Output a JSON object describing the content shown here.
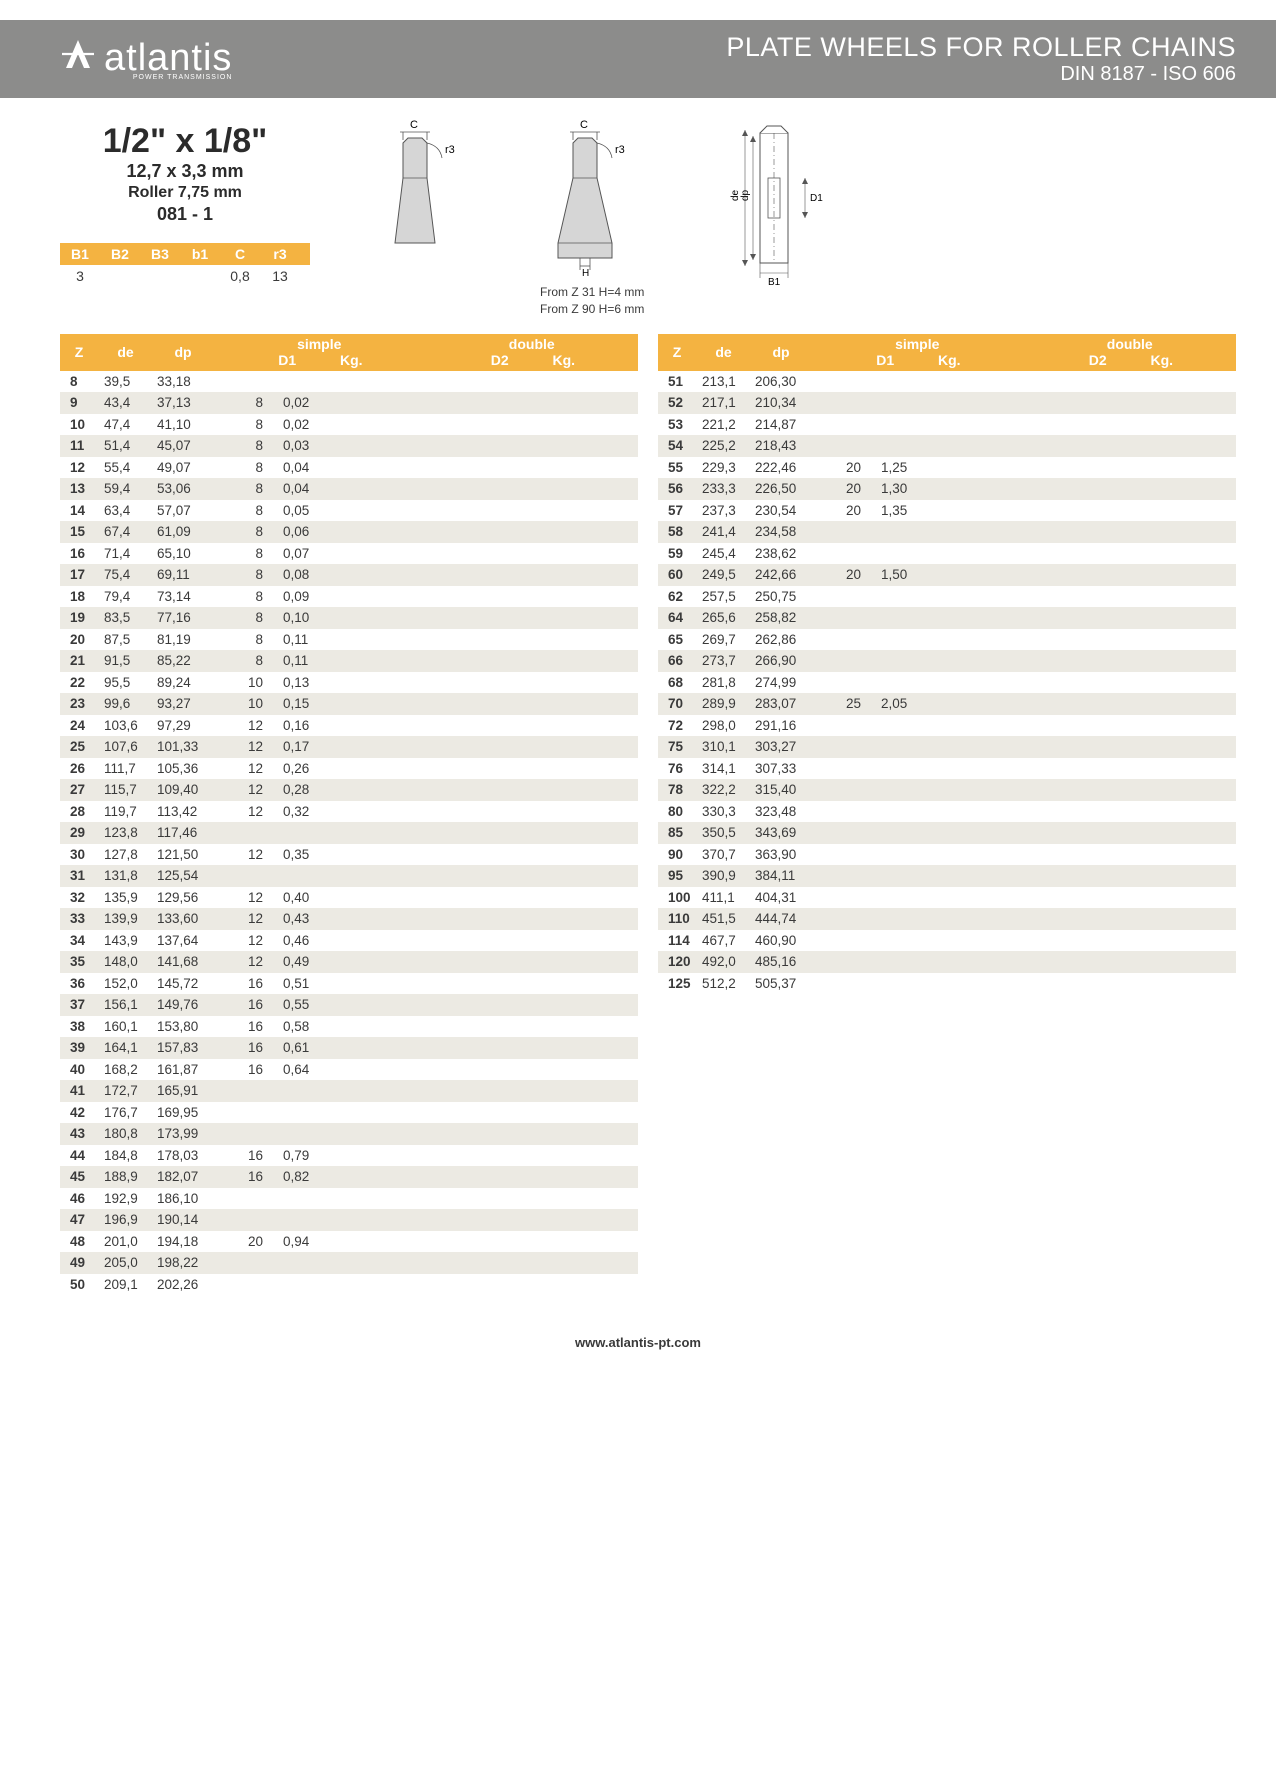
{
  "brand": {
    "name": "atlantis",
    "tagline": "POWER TRANSMISSION"
  },
  "header": {
    "title": "PLATE WHEELS FOR ROLLER CHAINS",
    "subtitle": "DIN 8187 - ISO 606"
  },
  "spec": {
    "size_imperial": "1/2\" x 1/8\"",
    "size_mm": "12,7 x 3,3 mm",
    "roller": "Roller 7,75 mm",
    "code": "081 - 1"
  },
  "params": {
    "headers": [
      "B1",
      "B2",
      "B3",
      "b1",
      "C",
      "r3"
    ],
    "values": [
      "3",
      "",
      "",
      "",
      "0,8",
      "13"
    ]
  },
  "diagram_labels": {
    "C": "C",
    "r3": "r3",
    "H": "H",
    "de": "de",
    "dp": "dp",
    "D1": "D1",
    "B1": "B1"
  },
  "notes": {
    "line1": "From Z 31 H=4 mm",
    "line2": "From Z 90 H=6 mm"
  },
  "table_headers": {
    "z": "Z",
    "de": "de",
    "dp": "dp",
    "simple": "simple",
    "double": "double",
    "d1": "D1",
    "kg": "Kg.",
    "d2": "D2",
    "kg2": "Kg."
  },
  "colors": {
    "header_bg": "#8c8c8b",
    "accent": "#f4b341",
    "row_alt": "#eceae3",
    "text": "#3a3a3a"
  },
  "left_rows": [
    {
      "z": "8",
      "de": "39,5",
      "dp": "33,18"
    },
    {
      "z": "9",
      "de": "43,4",
      "dp": "37,13",
      "d1": "8",
      "kg": "0,02"
    },
    {
      "z": "10",
      "de": "47,4",
      "dp": "41,10",
      "d1": "8",
      "kg": "0,02"
    },
    {
      "z": "11",
      "de": "51,4",
      "dp": "45,07",
      "d1": "8",
      "kg": "0,03"
    },
    {
      "z": "12",
      "de": "55,4",
      "dp": "49,07",
      "d1": "8",
      "kg": "0,04"
    },
    {
      "z": "13",
      "de": "59,4",
      "dp": "53,06",
      "d1": "8",
      "kg": "0,04"
    },
    {
      "z": "14",
      "de": "63,4",
      "dp": "57,07",
      "d1": "8",
      "kg": "0,05"
    },
    {
      "z": "15",
      "de": "67,4",
      "dp": "61,09",
      "d1": "8",
      "kg": "0,06"
    },
    {
      "z": "16",
      "de": "71,4",
      "dp": "65,10",
      "d1": "8",
      "kg": "0,07"
    },
    {
      "z": "17",
      "de": "75,4",
      "dp": "69,11",
      "d1": "8",
      "kg": "0,08"
    },
    {
      "z": "18",
      "de": "79,4",
      "dp": "73,14",
      "d1": "8",
      "kg": "0,09"
    },
    {
      "z": "19",
      "de": "83,5",
      "dp": "77,16",
      "d1": "8",
      "kg": "0,10"
    },
    {
      "z": "20",
      "de": "87,5",
      "dp": "81,19",
      "d1": "8",
      "kg": "0,11"
    },
    {
      "z": "21",
      "de": "91,5",
      "dp": "85,22",
      "d1": "8",
      "kg": "0,11"
    },
    {
      "z": "22",
      "de": "95,5",
      "dp": "89,24",
      "d1": "10",
      "kg": "0,13"
    },
    {
      "z": "23",
      "de": "99,6",
      "dp": "93,27",
      "d1": "10",
      "kg": "0,15"
    },
    {
      "z": "24",
      "de": "103,6",
      "dp": "97,29",
      "d1": "12",
      "kg": "0,16"
    },
    {
      "z": "25",
      "de": "107,6",
      "dp": "101,33",
      "d1": "12",
      "kg": "0,17"
    },
    {
      "z": "26",
      "de": "111,7",
      "dp": "105,36",
      "d1": "12",
      "kg": "0,26"
    },
    {
      "z": "27",
      "de": "115,7",
      "dp": "109,40",
      "d1": "12",
      "kg": "0,28"
    },
    {
      "z": "28",
      "de": "119,7",
      "dp": "113,42",
      "d1": "12",
      "kg": "0,32"
    },
    {
      "z": "29",
      "de": "123,8",
      "dp": "117,46"
    },
    {
      "z": "30",
      "de": "127,8",
      "dp": "121,50",
      "d1": "12",
      "kg": "0,35"
    },
    {
      "z": "31",
      "de": "131,8",
      "dp": "125,54"
    },
    {
      "z": "32",
      "de": "135,9",
      "dp": "129,56",
      "d1": "12",
      "kg": "0,40"
    },
    {
      "z": "33",
      "de": "139,9",
      "dp": "133,60",
      "d1": "12",
      "kg": "0,43"
    },
    {
      "z": "34",
      "de": "143,9",
      "dp": "137,64",
      "d1": "12",
      "kg": "0,46"
    },
    {
      "z": "35",
      "de": "148,0",
      "dp": "141,68",
      "d1": "12",
      "kg": "0,49"
    },
    {
      "z": "36",
      "de": "152,0",
      "dp": "145,72",
      "d1": "16",
      "kg": "0,51"
    },
    {
      "z": "37",
      "de": "156,1",
      "dp": "149,76",
      "d1": "16",
      "kg": "0,55"
    },
    {
      "z": "38",
      "de": "160,1",
      "dp": "153,80",
      "d1": "16",
      "kg": "0,58"
    },
    {
      "z": "39",
      "de": "164,1",
      "dp": "157,83",
      "d1": "16",
      "kg": "0,61"
    },
    {
      "z": "40",
      "de": "168,2",
      "dp": "161,87",
      "d1": "16",
      "kg": "0,64"
    },
    {
      "z": "41",
      "de": "172,7",
      "dp": "165,91"
    },
    {
      "z": "42",
      "de": "176,7",
      "dp": "169,95"
    },
    {
      "z": "43",
      "de": "180,8",
      "dp": "173,99"
    },
    {
      "z": "44",
      "de": "184,8",
      "dp": "178,03",
      "d1": "16",
      "kg": "0,79"
    },
    {
      "z": "45",
      "de": "188,9",
      "dp": "182,07",
      "d1": "16",
      "kg": "0,82"
    },
    {
      "z": "46",
      "de": "192,9",
      "dp": "186,10"
    },
    {
      "z": "47",
      "de": "196,9",
      "dp": "190,14"
    },
    {
      "z": "48",
      "de": "201,0",
      "dp": "194,18",
      "d1": "20",
      "kg": "0,94"
    },
    {
      "z": "49",
      "de": "205,0",
      "dp": "198,22"
    },
    {
      "z": "50",
      "de": "209,1",
      "dp": "202,26"
    }
  ],
  "right_rows": [
    {
      "z": "51",
      "de": "213,1",
      "dp": "206,30"
    },
    {
      "z": "52",
      "de": "217,1",
      "dp": "210,34"
    },
    {
      "z": "53",
      "de": "221,2",
      "dp": "214,87"
    },
    {
      "z": "54",
      "de": "225,2",
      "dp": "218,43"
    },
    {
      "z": "55",
      "de": "229,3",
      "dp": "222,46",
      "d1": "20",
      "kg": "1,25"
    },
    {
      "z": "56",
      "de": "233,3",
      "dp": "226,50",
      "d1": "20",
      "kg": "1,30"
    },
    {
      "z": "57",
      "de": "237,3",
      "dp": "230,54",
      "d1": "20",
      "kg": "1,35"
    },
    {
      "z": "58",
      "de": "241,4",
      "dp": "234,58"
    },
    {
      "z": "59",
      "de": "245,4",
      "dp": "238,62"
    },
    {
      "z": "60",
      "de": "249,5",
      "dp": "242,66",
      "d1": "20",
      "kg": "1,50"
    },
    {
      "z": "62",
      "de": "257,5",
      "dp": "250,75"
    },
    {
      "z": "64",
      "de": "265,6",
      "dp": "258,82"
    },
    {
      "z": "65",
      "de": "269,7",
      "dp": "262,86"
    },
    {
      "z": "66",
      "de": "273,7",
      "dp": "266,90"
    },
    {
      "z": "68",
      "de": "281,8",
      "dp": "274,99"
    },
    {
      "z": "70",
      "de": "289,9",
      "dp": "283,07",
      "d1": "25",
      "kg": "2,05"
    },
    {
      "z": "72",
      "de": "298,0",
      "dp": "291,16"
    },
    {
      "z": "75",
      "de": "310,1",
      "dp": "303,27"
    },
    {
      "z": "76",
      "de": "314,1",
      "dp": "307,33"
    },
    {
      "z": "78",
      "de": "322,2",
      "dp": "315,40"
    },
    {
      "z": "80",
      "de": "330,3",
      "dp": "323,48"
    },
    {
      "z": "85",
      "de": "350,5",
      "dp": "343,69"
    },
    {
      "z": "90",
      "de": "370,7",
      "dp": "363,90"
    },
    {
      "z": "95",
      "de": "390,9",
      "dp": "384,11"
    },
    {
      "z": "100",
      "de": "411,1",
      "dp": "404,31"
    },
    {
      "z": "110",
      "de": "451,5",
      "dp": "444,74"
    },
    {
      "z": "114",
      "de": "467,7",
      "dp": "460,90"
    },
    {
      "z": "120",
      "de": "492,0",
      "dp": "485,16"
    },
    {
      "z": "125",
      "de": "512,2",
      "dp": "505,37"
    }
  ],
  "footer": {
    "url": "www.atlantis-pt.com"
  }
}
